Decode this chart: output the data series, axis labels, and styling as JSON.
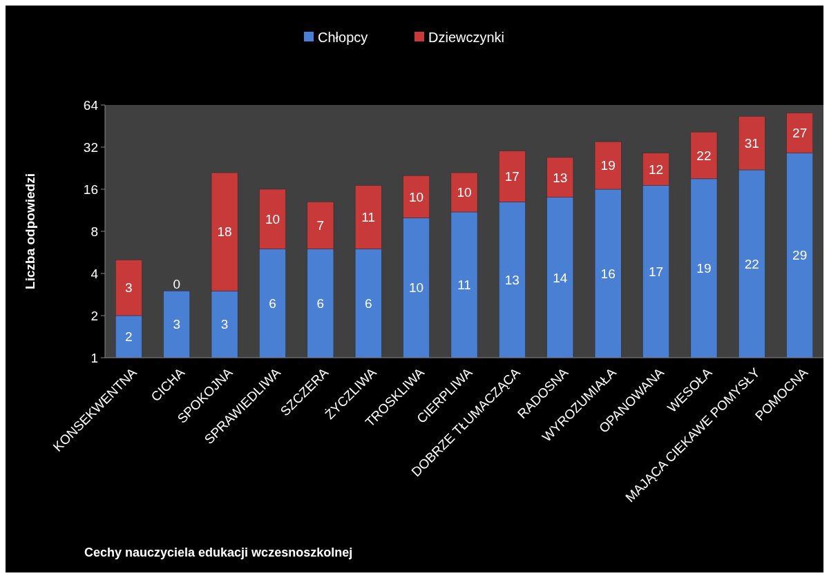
{
  "chart_data": {
    "type": "bar",
    "stacked": true,
    "log": true,
    "xlabel": "Cechy nauczyciela edukacji wczesnoszkolnej",
    "ylabel": "Liczba odpowiedzi",
    "categories": [
      "KONSEKWENTNA",
      "CICHA",
      "SPOKOJNA",
      "SPRAWIEDLIWA",
      "SZCZERA",
      "ŻYCZLIWA",
      "TROSKLIWA",
      "CIERPLIWA",
      "DOBRZE TŁUMACZĄCA",
      "RADOSNA",
      "WYROZUMIAŁA",
      "OPANOWANA",
      "WESOŁA",
      "MAJĄCA CIEKAWE POMYSŁY",
      "POMOCNA"
    ],
    "series": [
      {
        "name": "Chłopcy",
        "color": "#4a80d4",
        "values": [
          2,
          3,
          3,
          6,
          6,
          6,
          10,
          11,
          13,
          14,
          16,
          17,
          19,
          22,
          29
        ],
        "value_labels": [
          "2",
          "3",
          "3",
          "6",
          "6",
          "6",
          "10",
          "11",
          "13",
          "14",
          "16",
          "17",
          "19",
          "22",
          "29"
        ]
      },
      {
        "name": "Dziewczynki",
        "color": "#c83a3a",
        "values": [
          3,
          null,
          18,
          10,
          7,
          11,
          10,
          10,
          17,
          13,
          19,
          12,
          22,
          31,
          27
        ],
        "value_labels": [
          "3",
          "0",
          "18",
          "10",
          "7",
          "11",
          "10",
          "10",
          "17",
          "13",
          "19",
          "12",
          "22",
          "31",
          "27"
        ]
      }
    ],
    "ylim": [
      1,
      64
    ],
    "yticks": [
      1,
      2,
      4,
      8,
      16,
      32,
      64
    ],
    "legend": "top"
  }
}
